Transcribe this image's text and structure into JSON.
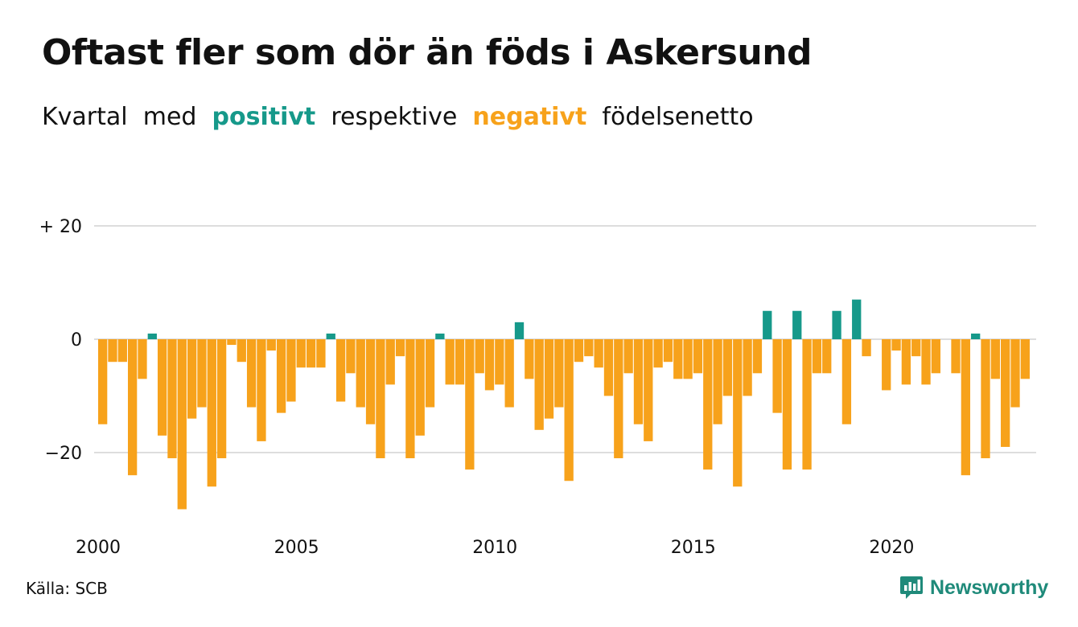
{
  "title": "Oftast fler som dör än föds i Askersund",
  "subtitle": {
    "w1": "Kvartal",
    "w2": "med",
    "positive": "positivt",
    "w3": "respektive",
    "negative": "negativt",
    "w4": "födelsenetto"
  },
  "source": "Källa: SCB",
  "brand": {
    "name": "Newsworthy",
    "icon": "newsworthy-logo-icon"
  },
  "colors": {
    "positive": "#16998a",
    "negative": "#f7a21b",
    "grid": "#dddddd",
    "text": "#111111"
  },
  "chart_data": {
    "type": "bar",
    "start": "2000 Q1",
    "xlabel": "",
    "ylabel": "",
    "ylim": [
      -30,
      20
    ],
    "yticks": [
      {
        "value": 20,
        "label": "+ 20"
      },
      {
        "value": 0,
        "label": "0"
      },
      {
        "value": -20,
        "label": "−20"
      }
    ],
    "xticks": [
      {
        "year": 2000,
        "label": "2000"
      },
      {
        "year": 2005,
        "label": "2005"
      },
      {
        "year": 2010,
        "label": "2010"
      },
      {
        "year": 2015,
        "label": "2015"
      },
      {
        "year": 2020,
        "label": "2020"
      }
    ],
    "grid": true,
    "values": [
      -15,
      -4,
      -4,
      -24,
      -7,
      1,
      -17,
      -21,
      -30,
      -14,
      -12,
      -26,
      -21,
      -1,
      -4,
      -12,
      -18,
      -2,
      -13,
      -11,
      -5,
      -5,
      -5,
      1,
      -11,
      -6,
      -12,
      -15,
      -21,
      -8,
      -3,
      -21,
      -17,
      -12,
      1,
      -8,
      -8,
      -23,
      -6,
      -9,
      -8,
      -12,
      3,
      -7,
      -16,
      -14,
      -12,
      -25,
      -4,
      -3,
      -5,
      -10,
      -21,
      -6,
      -15,
      -18,
      -5,
      -4,
      -7,
      -7,
      -6,
      -23,
      -15,
      -10,
      -26,
      -10,
      -6,
      5,
      -13,
      -23,
      5,
      -23,
      -6,
      -6,
      5,
      -15,
      7,
      -3,
      0,
      -9,
      -2,
      -8,
      -3,
      -8,
      -6,
      0,
      -6,
      -24,
      1,
      -21,
      -7,
      -19,
      -12,
      -7
    ]
  }
}
